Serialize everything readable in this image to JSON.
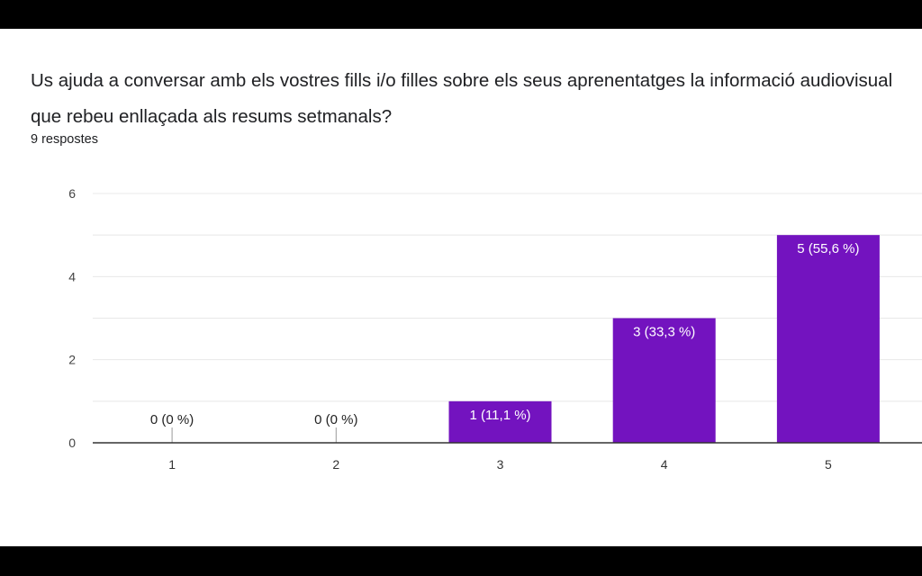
{
  "question": "Us ajuda a conversar amb els vostres fills i/o filles sobre els seus aprenentatges la informació audiovisual que rebeu enllaçada als resums setmanals?",
  "responses": "9 respostes",
  "colors": {
    "bar": "#7313bf",
    "grid": "#e8e8e8",
    "axis": "#333333"
  },
  "chart_data": {
    "type": "bar",
    "categories": [
      "1",
      "2",
      "3",
      "4",
      "5"
    ],
    "values": [
      0,
      0,
      1,
      3,
      5
    ],
    "data_labels": [
      "0 (0 %)",
      "0 (0 %)",
      "1 (11,1 %)",
      "3 (33,3 %)",
      "5 (55,6 %)"
    ],
    "yticks": [
      "0",
      "2",
      "4",
      "6"
    ],
    "ylim": [
      0,
      6
    ],
    "grid": true,
    "title": "",
    "xlabel": "",
    "ylabel": ""
  }
}
